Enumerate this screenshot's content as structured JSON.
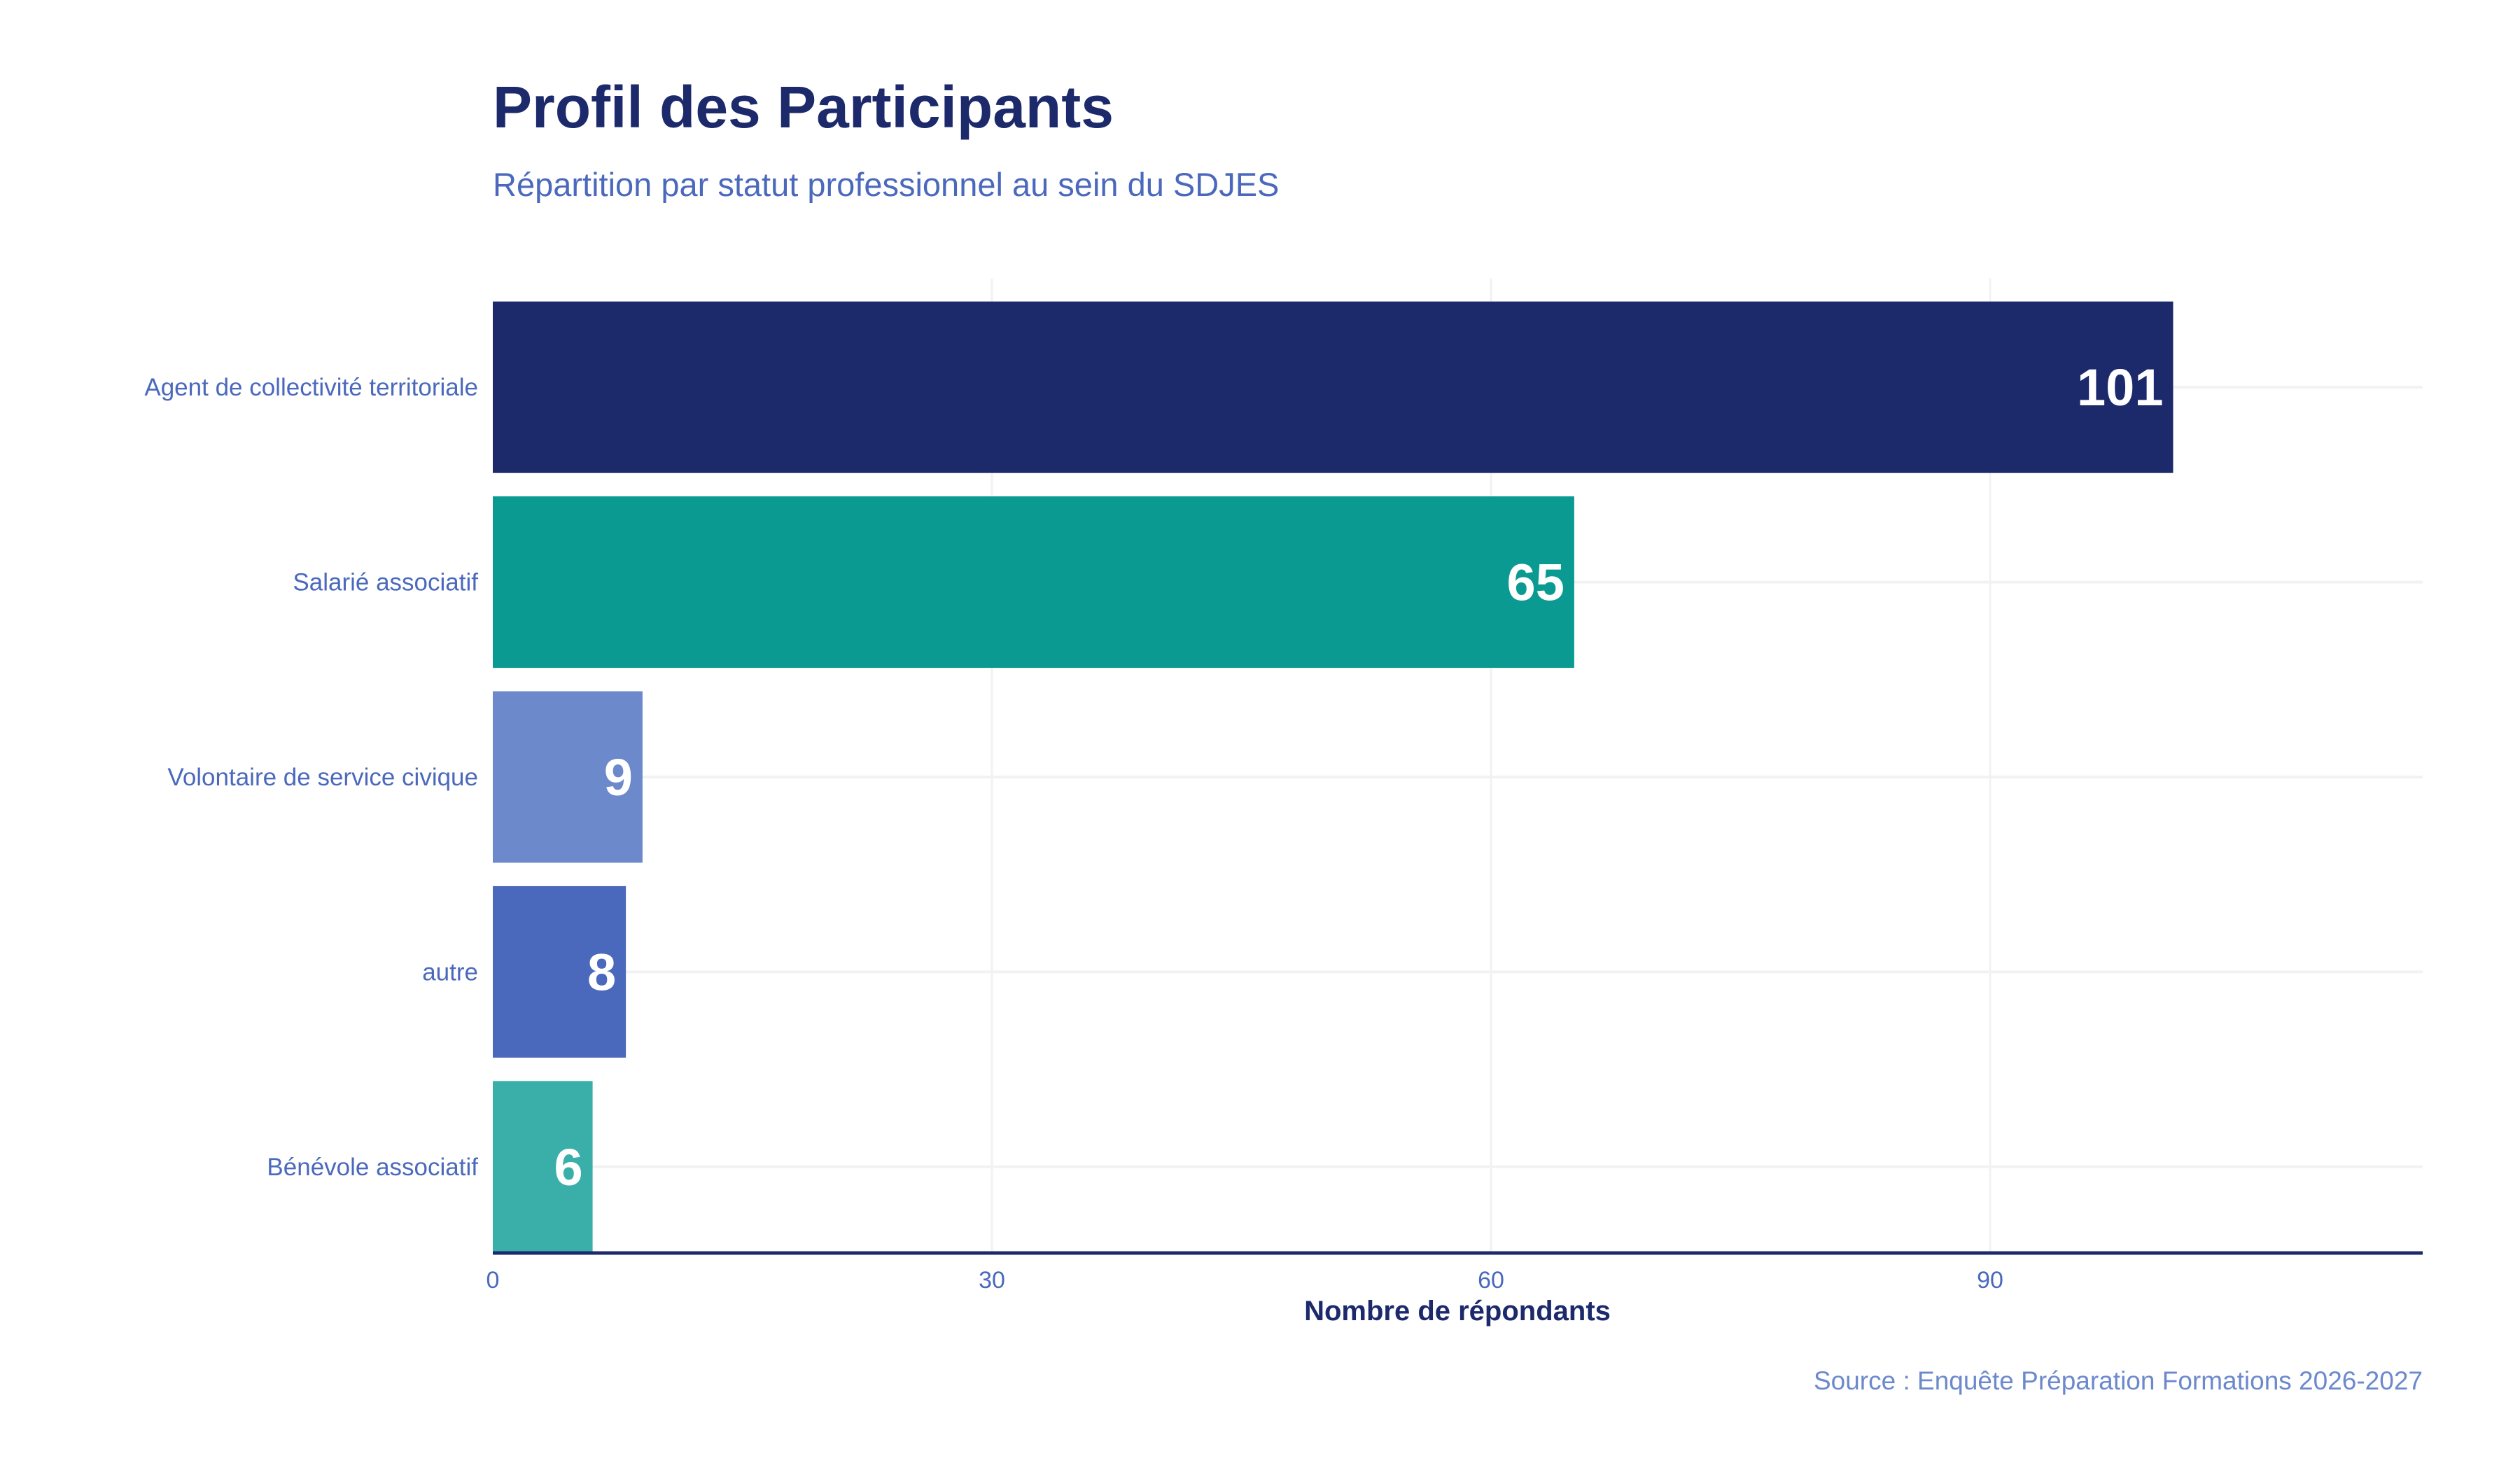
{
  "chart_data": {
    "type": "bar",
    "orientation": "horizontal",
    "title": "Profil des Participants",
    "subtitle": "Répartition par statut professionnel au sein du SDJES",
    "xlabel": "Nombre de répondants",
    "ylabel": "",
    "caption": "Source : Enquête Préparation Formations 2026-2027",
    "categories": [
      "Agent de collectivité territoriale",
      "Salarié associatif",
      "Volontaire de service civique",
      "autre",
      "Bénévole associatif"
    ],
    "values": [
      101,
      65,
      9,
      8,
      6
    ],
    "colors": [
      "#1C2A6C",
      "#0A9A91",
      "#6C89CC",
      "#4B69BC",
      "#3AAFAA"
    ],
    "xlim": [
      0,
      116
    ],
    "xticks": [
      0,
      30,
      60,
      90
    ],
    "grid": true,
    "legend": "none",
    "text_colors": {
      "title": "#1C2A6C",
      "subtitle": "#4B69BC",
      "axis": "#4B69BC",
      "caption": "#6C89CC"
    }
  }
}
